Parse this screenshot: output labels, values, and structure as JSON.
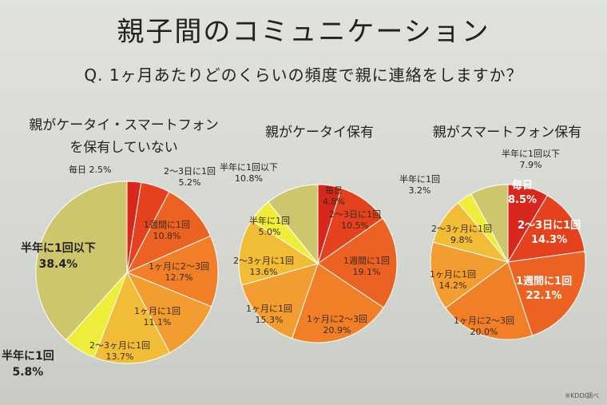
{
  "slide": {
    "title": "親子間のコミュニケーション",
    "question": "Q.  1ヶ月あたりどのくらいの頻度で親に連絡をしますか？",
    "credit": "※KDDI調べ"
  },
  "chart_data": [
    {
      "type": "pie",
      "title_lines": [
        "親がケータイ・スマートフォン",
        "を保有していない"
      ],
      "slices": [
        {
          "label": "毎日",
          "value": 2.5,
          "display": "毎日 2.5%",
          "color": "#d8271c"
        },
        {
          "label": "2〜3日に1回",
          "value": 5.2,
          "display": "2〜3日に1回\n5.2%",
          "color": "#e4421e"
        },
        {
          "label": "1週間に1回",
          "value": 10.8,
          "display": "1週間に1回\n10.8%",
          "color": "#ec6222"
        },
        {
          "label": "1ヶ月に2〜3回",
          "value": 12.7,
          "display": "1ヶ月に2〜3回\n12.7%",
          "color": "#f07f27"
        },
        {
          "label": "1ヶ月に1回",
          "value": 11.1,
          "display": "1ヶ月に1回\n11.1%",
          "color": "#f39c2f"
        },
        {
          "label": "2〜3ヶ月に1回",
          "value": 13.7,
          "display": "2〜3ヶ月に1回\n13.7%",
          "color": "#f2bd36"
        },
        {
          "label": "半年に1回",
          "value": 5.8,
          "display": "半年に1回\n5.8%",
          "color": "#eded3a"
        },
        {
          "label": "半年に1回以下",
          "value": 38.4,
          "display": "半年に1回以下\n38.4%",
          "color": "#cdc66c"
        }
      ]
    },
    {
      "type": "pie",
      "title_lines": [
        "親がケータイ保有"
      ],
      "slices": [
        {
          "label": "毎日",
          "value": 4.8,
          "display": "毎日\n4.8%",
          "color": "#d8271c"
        },
        {
          "label": "2〜3日に1回",
          "value": 10.5,
          "display": "2〜3日に1回\n10.5%",
          "color": "#e4421e"
        },
        {
          "label": "1週間に1回",
          "value": 19.1,
          "display": "1週間に1回\n19.1%",
          "color": "#ec6222"
        },
        {
          "label": "1ヶ月に2〜3回",
          "value": 20.9,
          "display": "1ヶ月に2〜3回\n20.9%",
          "color": "#f07f27"
        },
        {
          "label": "1ヶ月に1回",
          "value": 15.3,
          "display": "1ヶ月に1回\n15.3%",
          "color": "#f39c2f"
        },
        {
          "label": "2〜3ヶ月に1回",
          "value": 13.6,
          "display": "2〜3ヶ月に1回\n13.6%",
          "color": "#f2bd36"
        },
        {
          "label": "半年に1回",
          "value": 5.0,
          "display": "半年に1回\n5.0%",
          "color": "#eded3a"
        },
        {
          "label": "半年に1回以下",
          "value": 10.8,
          "display": "半年に1回以下\n10.8%",
          "color": "#cdc66c"
        }
      ]
    },
    {
      "type": "pie",
      "title_lines": [
        "親がスマートフォン保有"
      ],
      "slices": [
        {
          "label": "毎日",
          "value": 8.5,
          "display": "毎日\n8.5%",
          "color": "#d8271c"
        },
        {
          "label": "2〜3日に1回",
          "value": 14.3,
          "display": "2〜3日に1回\n14.3%",
          "color": "#e4421e"
        },
        {
          "label": "1週間に1回",
          "value": 22.1,
          "display": "1週間に1回\n22.1%",
          "color": "#ec6222"
        },
        {
          "label": "1ヶ月に2〜3回",
          "value": 20.0,
          "display": "1ヶ月に2〜3回\n20.0%",
          "color": "#f07f27"
        },
        {
          "label": "1ヶ月に1回",
          "value": 14.2,
          "display": "1ヶ月に1回\n14.2%",
          "color": "#f39c2f"
        },
        {
          "label": "2〜3ヶ月に1回",
          "value": 9.8,
          "display": "2〜3ヶ月に1回\n9.8%",
          "color": "#f2bd36"
        },
        {
          "label": "半年に1回",
          "value": 3.2,
          "display": "半年に1回\n3.2%",
          "color": "#eded3a"
        },
        {
          "label": "半年に1回以下",
          "value": 7.9,
          "display": "半年に1回以下\n7.9%",
          "color": "#cdc66c"
        }
      ]
    }
  ]
}
